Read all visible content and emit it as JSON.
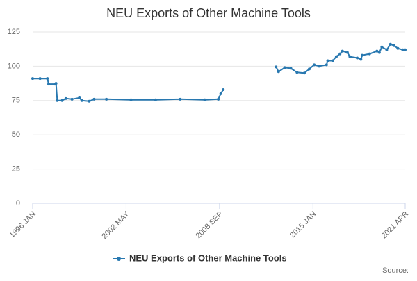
{
  "chart_data": {
    "type": "line",
    "title": "NEU Exports of Other Machine Tools",
    "x": [
      "1996 JAN",
      "1996 JUL",
      "1997 JAN",
      "1997 FEB",
      "1997 JUL",
      "1997 AUG",
      "1997 SEP",
      "1998 JAN",
      "1998 APR",
      "1998 SEP",
      "1999 MAR",
      "1999 MAY",
      "1999 NOV",
      "2000 MAR",
      "2001 JAN",
      "2002 SEP",
      "2004 MAY",
      "2006 JAN",
      "2007 SEP",
      "2008 AUG",
      "2008 OCT",
      "2008 DEC",
      "2010 SEP",
      "2012 JUL",
      "2012 SEP",
      "2013 FEB",
      "2013 JUL",
      "2013 DEC",
      "2014 JUN",
      "2014 OCT",
      "2015 FEB",
      "2015 JUN",
      "2015 DEC",
      "2016 JAN",
      "2016 MAY",
      "2016 AUG",
      "2016 NOV",
      "2017 JAN",
      "2017 MAY",
      "2017 JUL",
      "2018 JAN",
      "2018 APR",
      "2018 MAY",
      "2018 NOV",
      "2019 MAY",
      "2019 JUL",
      "2019 SEP",
      "2020 JAN",
      "2020 APR",
      "2020 JUL",
      "2020 OCT",
      "2021 FEB",
      "2021 APR"
    ],
    "series": [
      {
        "name": "NEU Exports of Other Machine Tools",
        "color": "#2878b0",
        "values": [
          91,
          91,
          91,
          87,
          87,
          87.5,
          75,
          75,
          76.5,
          76,
          77,
          75,
          74.5,
          76,
          76,
          75.5,
          75.5,
          76,
          75.5,
          76,
          80,
          83,
          null,
          99.5,
          96,
          99,
          98.5,
          95.5,
          95,
          98,
          101,
          100,
          101,
          104,
          104,
          107,
          109,
          111,
          110,
          107,
          106,
          105,
          108,
          109,
          111,
          110,
          114,
          112,
          116,
          115,
          113,
          112,
          112
        ]
      }
    ],
    "xticks": [
      "1996 JAN",
      "2002 MAY",
      "2008 SEP",
      "2015 JAN",
      "2021 APR"
    ],
    "ylim": [
      0,
      125
    ],
    "yticks": [
      0,
      25,
      50,
      75,
      100,
      125
    ],
    "grid": true,
    "legend": "bottom",
    "source": "Source:"
  }
}
